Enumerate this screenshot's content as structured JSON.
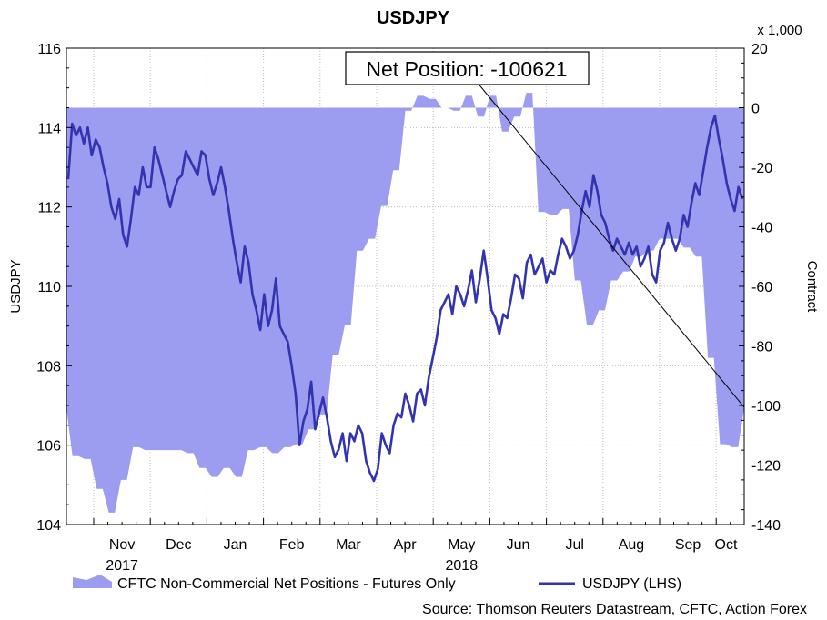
{
  "chart_data": {
    "type": "line+area",
    "title": "USDJPY",
    "left_axis": {
      "label": "USDJPY",
      "ylim": [
        104,
        116
      ],
      "ticks": [
        "104",
        "106",
        "108",
        "110",
        "112",
        "114",
        "116"
      ]
    },
    "right_axis": {
      "label": "Contract",
      "multiplier_note": "x 1,000",
      "ylim": [
        -140,
        20
      ],
      "ticks": [
        "-140",
        "-120",
        "-100",
        "-80",
        "-60",
        "-40",
        "-20",
        "0",
        "20"
      ]
    },
    "x_axis": {
      "month_labels": [
        "Nov",
        "Dec",
        "Jan",
        "Feb",
        "Mar",
        "Apr",
        "May",
        "Jun",
        "Jul",
        "Aug",
        "Sep",
        "Oct"
      ],
      "year_labels": [
        "2017",
        "2018"
      ]
    },
    "annotation": {
      "text": "Net Position: -100621",
      "value": -100621
    },
    "grid": true,
    "legend_position": "bottom",
    "series": [
      {
        "name": "CFTC Non-Commercial Net Positions - Futures Only",
        "axis": "right",
        "style": "area",
        "color": "#9c9cf0",
        "x_index_range": [
          0,
          58
        ],
        "values": [
          -101,
          -117,
          -117,
          -118,
          -118,
          -128,
          -128,
          -136,
          -136,
          -125,
          -125,
          -114,
          -114,
          -115,
          -115,
          -115,
          -115,
          -115,
          -115,
          -115,
          -116,
          -116,
          -121,
          -121,
          -124,
          -124,
          -121,
          -121,
          -124,
          -124,
          -115,
          -115,
          -114,
          -114,
          -116,
          -116,
          -114,
          -114,
          -113,
          -113,
          -108,
          -108,
          -103,
          -103,
          -83,
          -83,
          -73,
          -73,
          -48,
          -48,
          -44,
          -44,
          -33,
          -33,
          -21,
          -21,
          -1,
          -1,
          4,
          4,
          3,
          3,
          0,
          0,
          -1,
          -1,
          4,
          4,
          -3,
          -3,
          4,
          4,
          -8,
          -8,
          -3,
          -3,
          5,
          5,
          -35,
          -35,
          -36,
          -36,
          -34,
          -34,
          -58,
          -58,
          -73,
          -73,
          -68,
          -68,
          -58,
          -58,
          -55,
          -55,
          -50,
          -50,
          -48,
          -48,
          -44,
          -44,
          -44,
          -44,
          -47,
          -47,
          -50,
          -50,
          -84,
          -84,
          -113,
          -113,
          -114,
          -114,
          -101
        ]
      },
      {
        "name": "USDJPY (LHS)",
        "axis": "left",
        "style": "line",
        "color": "#3333b0",
        "values": [
          112.7,
          114.1,
          113.8,
          114.0,
          113.6,
          114.0,
          113.3,
          113.7,
          113.5,
          113.0,
          112.6,
          112.0,
          111.7,
          112.2,
          111.3,
          111.0,
          111.7,
          112.5,
          112.3,
          113.0,
          112.5,
          112.5,
          113.5,
          113.2,
          112.8,
          112.4,
          112.0,
          112.4,
          112.7,
          112.8,
          113.4,
          113.2,
          113.0,
          112.8,
          113.4,
          113.3,
          112.7,
          112.3,
          112.6,
          113.0,
          112.5,
          111.9,
          111.2,
          110.6,
          110.1,
          111.0,
          110.6,
          109.8,
          109.4,
          108.9,
          109.8,
          109.0,
          109.4,
          110.2,
          109.0,
          108.8,
          108.6,
          108.0,
          107.3,
          106.0,
          106.6,
          106.9,
          107.6,
          106.4,
          106.8,
          107.2,
          106.7,
          106.1,
          105.7,
          105.9,
          106.3,
          105.6,
          106.3,
          106.1,
          106.5,
          106.3,
          105.6,
          105.3,
          105.1,
          105.4,
          106.3,
          106.0,
          105.8,
          106.5,
          106.8,
          106.7,
          107.3,
          107.0,
          106.6,
          107.3,
          107.4,
          107.0,
          107.7,
          108.2,
          108.7,
          109.4,
          109.6,
          109.8,
          109.3,
          110.0,
          109.8,
          109.5,
          109.9,
          110.4,
          109.6,
          110.2,
          110.9,
          110.2,
          109.4,
          109.2,
          108.8,
          109.3,
          109.2,
          109.7,
          110.3,
          110.2,
          109.7,
          110.6,
          110.8,
          110.3,
          110.5,
          110.7,
          110.1,
          110.4,
          110.3,
          110.8,
          111.2,
          111.0,
          110.7,
          110.9,
          111.3,
          111.9,
          112.4,
          112.0,
          112.8,
          112.4,
          111.8,
          111.6,
          111.2,
          110.9,
          111.2,
          111.0,
          110.8,
          111.1,
          110.8,
          111.0,
          110.5,
          110.7,
          111.0,
          110.3,
          110.1,
          110.9,
          111.1,
          111.6,
          111.2,
          110.9,
          111.2,
          111.8,
          111.5,
          112.1,
          112.6,
          112.3,
          112.9,
          113.5,
          114.0,
          114.3,
          113.7,
          113.2,
          112.6,
          112.2,
          111.9,
          112.5,
          112.2
        ]
      }
    ],
    "source": "Source: Thomson Reuters Datastream, CFTC, Action Forex"
  }
}
